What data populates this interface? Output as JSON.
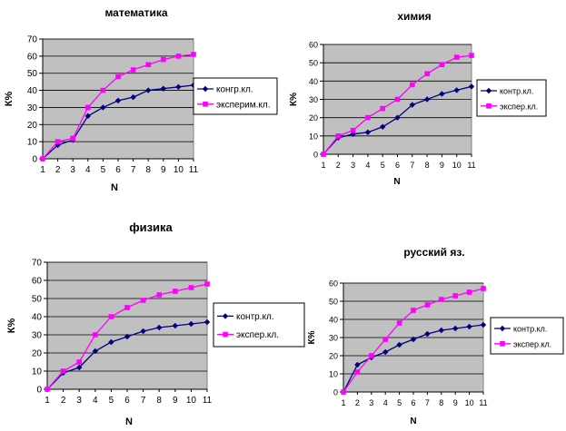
{
  "colors": {
    "plot_bg": "#c0c0c0",
    "grid": "#000000",
    "control": "#000080",
    "experimental": "#ff00ff"
  },
  "chart_data": [
    {
      "type": "line",
      "title": "математика",
      "xlabel": "N",
      "ylabel": "К%",
      "categories": [
        "1",
        "2",
        "3",
        "4",
        "5",
        "6",
        "7",
        "8",
        "9",
        "10",
        "11"
      ],
      "ylim": [
        0,
        70
      ],
      "yticks": [
        0,
        10,
        20,
        30,
        40,
        50,
        60,
        70
      ],
      "grid": "horizontal",
      "legend_placement": "right",
      "series": [
        {
          "name": "конгр.кл.",
          "color": "#000080",
          "marker": "diamond",
          "values": [
            0,
            8,
            11,
            25,
            30,
            34,
            36,
            40,
            41,
            42,
            43
          ]
        },
        {
          "name": "эксперим.кл.",
          "color": "#ff00ff",
          "marker": "square",
          "values": [
            0,
            10,
            12,
            30,
            40,
            48,
            52,
            55,
            58,
            60,
            61
          ]
        }
      ]
    },
    {
      "type": "line",
      "title": "химия",
      "xlabel": "N",
      "ylabel": "К%",
      "categories": [
        "1",
        "2",
        "3",
        "4",
        "5",
        "6",
        "7",
        "8",
        "9",
        "10",
        "11"
      ],
      "ylim": [
        0,
        60
      ],
      "yticks": [
        0,
        10,
        20,
        30,
        40,
        50,
        60
      ],
      "grid": "horizontal",
      "legend_placement": "right",
      "series": [
        {
          "name": "контр.кл.",
          "color": "#000080",
          "marker": "diamond",
          "values": [
            0,
            9,
            11,
            12,
            15,
            20,
            27,
            30,
            33,
            35,
            37
          ]
        },
        {
          "name": "экспер.кл.",
          "color": "#ff00ff",
          "marker": "square",
          "values": [
            0,
            10,
            13,
            20,
            25,
            30,
            38,
            44,
            49,
            53,
            54
          ]
        }
      ]
    },
    {
      "type": "line",
      "title": "физика",
      "xlabel": "N",
      "ylabel": "К%",
      "categories": [
        "1",
        "2",
        "3",
        "4",
        "5",
        "6",
        "7",
        "8",
        "9",
        "10",
        "11"
      ],
      "ylim": [
        0,
        70
      ],
      "yticks": [
        0,
        10,
        20,
        30,
        40,
        50,
        60,
        70
      ],
      "grid": "horizontal",
      "legend_placement": "right",
      "series": [
        {
          "name": "контр.кл.",
          "color": "#000080",
          "marker": "diamond",
          "values": [
            0,
            9,
            12,
            21,
            26,
            29,
            32,
            34,
            35,
            36,
            37
          ]
        },
        {
          "name": "экспер.кл.",
          "color": "#ff00ff",
          "marker": "square",
          "values": [
            0,
            10,
            15,
            30,
            40,
            45,
            49,
            52,
            54,
            56,
            58
          ]
        }
      ]
    },
    {
      "type": "line",
      "title": "русский яз.",
      "xlabel": "N",
      "ylabel": "К%",
      "categories": [
        "1",
        "2",
        "3",
        "4",
        "5",
        "6",
        "7",
        "8",
        "9",
        "10",
        "11"
      ],
      "ylim": [
        0,
        60
      ],
      "yticks": [
        0,
        10,
        20,
        30,
        40,
        50,
        60
      ],
      "grid": "horizontal",
      "legend_placement": "right",
      "series": [
        {
          "name": "контр.кл.",
          "color": "#000080",
          "marker": "diamond",
          "values": [
            0,
            15,
            19,
            22,
            26,
            29,
            32,
            34,
            35,
            36,
            37
          ]
        },
        {
          "name": "экспер.кл.",
          "color": "#ff00ff",
          "marker": "square",
          "values": [
            0,
            11,
            20,
            29,
            38,
            45,
            48,
            51,
            53,
            55,
            57
          ]
        }
      ]
    }
  ]
}
